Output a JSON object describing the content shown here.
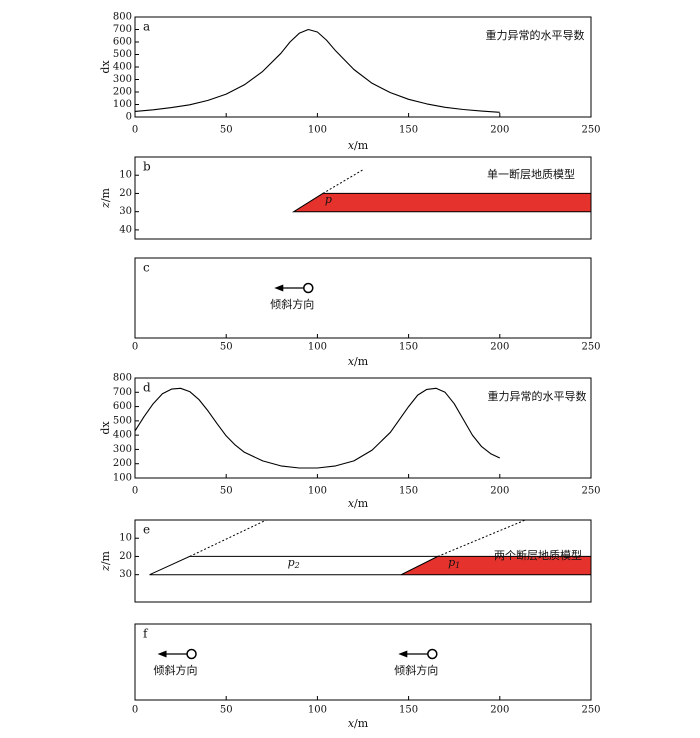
{
  "chart_data": [
    {
      "panel": "a",
      "type": "line",
      "ylabel": "dx",
      "xlabel": "x/m",
      "xlim": [
        0,
        250
      ],
      "ylim": [
        0,
        800
      ],
      "xticks": [
        0,
        50,
        100,
        150,
        200,
        250
      ],
      "yticks": [
        0,
        100,
        200,
        300,
        400,
        500,
        600,
        700,
        800
      ],
      "annotation": "重力异常的水平导数",
      "series": [
        {
          "x": [
            0,
            10,
            20,
            30,
            40,
            50,
            60,
            70,
            80,
            85,
            90,
            95,
            100,
            105,
            110,
            120,
            130,
            140,
            150,
            160,
            170,
            180,
            190,
            200
          ],
          "y": [
            45,
            58,
            75,
            98,
            133,
            183,
            258,
            365,
            510,
            600,
            670,
            700,
            680,
            615,
            530,
            380,
            270,
            195,
            142,
            105,
            78,
            60,
            47,
            38
          ]
        }
      ]
    },
    {
      "panel": "b",
      "type": "diagram",
      "ylabel": "z/m",
      "ylim": [
        0,
        45
      ],
      "yticks": [
        10,
        20,
        30,
        40
      ],
      "annotation": "单一断层地质模型",
      "bodies": [
        {
          "label": "p",
          "fill": "#e5322d",
          "outline": [
            [
              87,
              30
            ],
            [
              103,
              20
            ],
            [
              250,
              20
            ],
            [
              250,
              30
            ]
          ]
        }
      ],
      "faults": [
        {
          "from": [
            103,
            20
          ],
          "to": [
            125,
            7
          ]
        }
      ]
    },
    {
      "panel": "c",
      "type": "diagram",
      "xlabel": "x/m",
      "xlim": [
        0,
        250
      ],
      "xticks": [
        0,
        50,
        100,
        150,
        200,
        250
      ],
      "dip_markers": [
        {
          "x": 95,
          "text": "倾斜方向"
        }
      ]
    },
    {
      "panel": "d",
      "type": "line",
      "ylabel": "dx",
      "xlabel": "x/m",
      "xlim": [
        0,
        250
      ],
      "ylim": [
        100,
        800
      ],
      "xticks": [
        0,
        50,
        100,
        150,
        200,
        250
      ],
      "yticks": [
        100,
        200,
        300,
        400,
        500,
        600,
        700,
        800
      ],
      "annotation": "重力异常的水平导数",
      "series": [
        {
          "x": [
            0,
            5,
            10,
            15,
            20,
            25,
            30,
            35,
            40,
            45,
            50,
            55,
            60,
            70,
            80,
            90,
            100,
            110,
            120,
            130,
            140,
            145,
            150,
            155,
            160,
            165,
            170,
            175,
            180,
            185,
            190,
            195,
            200
          ],
          "y": [
            430,
            530,
            620,
            690,
            722,
            728,
            705,
            650,
            570,
            480,
            395,
            330,
            280,
            220,
            185,
            170,
            170,
            185,
            220,
            295,
            420,
            510,
            600,
            680,
            720,
            728,
            700,
            620,
            510,
            400,
            320,
            270,
            240
          ]
        }
      ]
    },
    {
      "panel": "e",
      "type": "diagram",
      "ylabel": "z/m",
      "ylim": [
        0,
        45
      ],
      "yticks": [
        10,
        20,
        30
      ],
      "annotation": "两个断层地质模型",
      "bodies": [
        {
          "label": "p2",
          "label_base": "p",
          "label_sub": "2",
          "fill": "#ffffff",
          "outline": [
            [
              8,
              30
            ],
            [
              30,
              20
            ],
            [
              166,
              20
            ],
            [
              146,
              30
            ]
          ]
        },
        {
          "label": "p1",
          "label_base": "p",
          "label_sub": "1",
          "fill": "#e5322d",
          "outline": [
            [
              146,
              30
            ],
            [
              166,
              20
            ],
            [
              250,
              20
            ],
            [
              250,
              30
            ]
          ]
        }
      ],
      "faults": [
        {
          "from": [
            30,
            20
          ],
          "to": [
            72,
            0
          ]
        },
        {
          "from": [
            166,
            20
          ],
          "to": [
            214,
            0
          ]
        }
      ]
    },
    {
      "panel": "f",
      "type": "diagram",
      "xlabel": "x/m",
      "xlim": [
        0,
        250
      ],
      "xticks": [
        0,
        50,
        100,
        150,
        200,
        250
      ],
      "dip_markers": [
        {
          "x": 31,
          "text": "倾斜方向"
        },
        {
          "x": 163,
          "text": "倾斜方向"
        }
      ]
    }
  ]
}
